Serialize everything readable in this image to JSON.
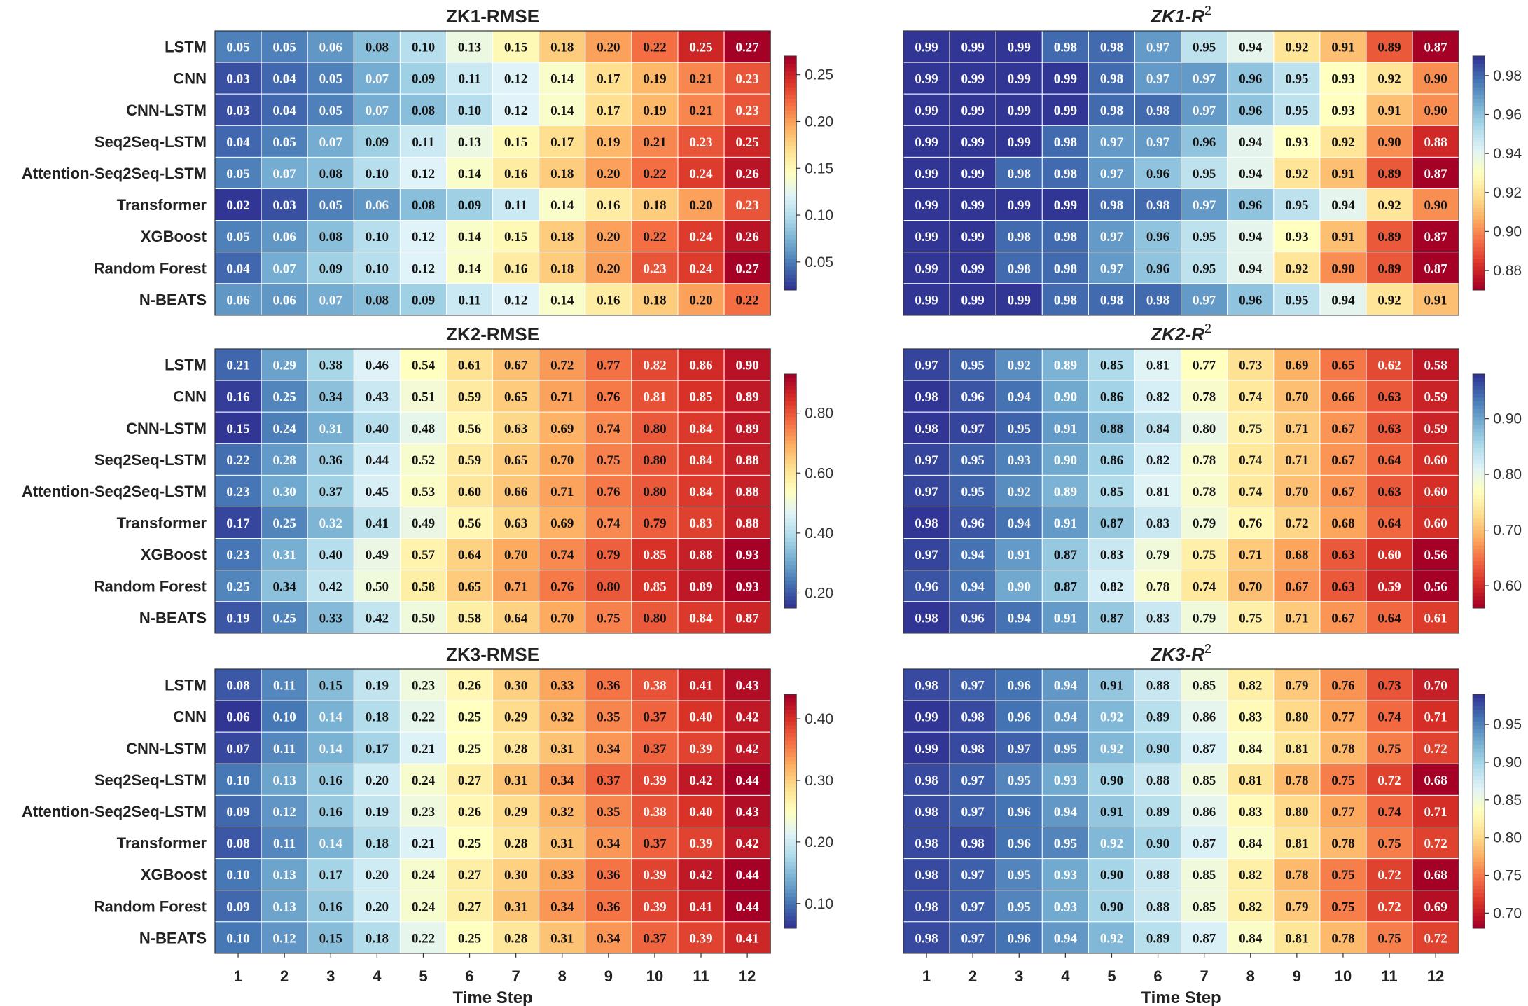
{
  "chart_data": {
    "type": "heatmap",
    "columns": [
      "1",
      "2",
      "3",
      "4",
      "5",
      "6",
      "7",
      "8",
      "9",
      "10",
      "11",
      "12"
    ],
    "xlabel": "Time Step",
    "rows": [
      "LSTM",
      "CNN",
      "CNN-LSTM",
      "Seq2Seq-LSTM",
      "Attention-Seq2Seq-LSTM",
      "Transformer",
      "XGBoost",
      "Random Forest",
      "N-BEATS"
    ],
    "colormap": [
      "#313695",
      "#4575b4",
      "#74add1",
      "#abd9e9",
      "#e0f3f8",
      "#ffffbf",
      "#fee090",
      "#fdae61",
      "#f46d43",
      "#d73027",
      "#a50026"
    ],
    "panels": [
      {
        "title_main": "ZK1-RMSE",
        "title_sup": "",
        "vmin": 0.02,
        "vmax": 0.27,
        "cbar_ticks": [
          "0.05",
          "0.10",
          "0.15",
          "0.20",
          "0.25"
        ],
        "values": [
          [
            "0.05",
            "0.05",
            "0.06",
            "0.08",
            "0.10",
            "0.13",
            "0.15",
            "0.18",
            "0.20",
            "0.22",
            "0.25",
            "0.27"
          ],
          [
            "0.03",
            "0.04",
            "0.05",
            "0.07",
            "0.09",
            "0.11",
            "0.12",
            "0.14",
            "0.17",
            "0.19",
            "0.21",
            "0.23"
          ],
          [
            "0.03",
            "0.04",
            "0.05",
            "0.07",
            "0.08",
            "0.10",
            "0.12",
            "0.14",
            "0.17",
            "0.19",
            "0.21",
            "0.23"
          ],
          [
            "0.04",
            "0.05",
            "0.07",
            "0.09",
            "0.11",
            "0.13",
            "0.15",
            "0.17",
            "0.19",
            "0.21",
            "0.23",
            "0.25"
          ],
          [
            "0.05",
            "0.07",
            "0.08",
            "0.10",
            "0.12",
            "0.14",
            "0.16",
            "0.18",
            "0.20",
            "0.22",
            "0.24",
            "0.26"
          ],
          [
            "0.02",
            "0.03",
            "0.05",
            "0.06",
            "0.08",
            "0.09",
            "0.11",
            "0.14",
            "0.16",
            "0.18",
            "0.20",
            "0.23"
          ],
          [
            "0.05",
            "0.06",
            "0.08",
            "0.10",
            "0.12",
            "0.14",
            "0.15",
            "0.18",
            "0.20",
            "0.22",
            "0.24",
            "0.26"
          ],
          [
            "0.04",
            "0.07",
            "0.09",
            "0.10",
            "0.12",
            "0.14",
            "0.16",
            "0.18",
            "0.20",
            "0.23",
            "0.24",
            "0.27"
          ],
          [
            "0.06",
            "0.06",
            "0.07",
            "0.08",
            "0.09",
            "0.11",
            "0.12",
            "0.14",
            "0.16",
            "0.18",
            "0.20",
            "0.22"
          ]
        ]
      },
      {
        "title_main": "ZK1-R",
        "title_sup": "2",
        "vmin": 0.87,
        "vmax": 0.99,
        "cbar_ticks": [
          "0.88",
          "0.90",
          "0.92",
          "0.94",
          "0.96",
          "0.98"
        ],
        "values": [
          [
            "0.99",
            "0.99",
            "0.99",
            "0.98",
            "0.98",
            "0.97",
            "0.95",
            "0.94",
            "0.92",
            "0.91",
            "0.89",
            "0.87"
          ],
          [
            "0.99",
            "0.99",
            "0.99",
            "0.99",
            "0.98",
            "0.97",
            "0.97",
            "0.96",
            "0.95",
            "0.93",
            "0.92",
            "0.90"
          ],
          [
            "0.99",
            "0.99",
            "0.99",
            "0.99",
            "0.98",
            "0.98",
            "0.97",
            "0.96",
            "0.95",
            "0.93",
            "0.91",
            "0.90"
          ],
          [
            "0.99",
            "0.99",
            "0.99",
            "0.98",
            "0.97",
            "0.97",
            "0.96",
            "0.94",
            "0.93",
            "0.92",
            "0.90",
            "0.88"
          ],
          [
            "0.99",
            "0.99",
            "0.98",
            "0.98",
            "0.97",
            "0.96",
            "0.95",
            "0.94",
            "0.92",
            "0.91",
            "0.89",
            "0.87"
          ],
          [
            "0.99",
            "0.99",
            "0.99",
            "0.99",
            "0.98",
            "0.98",
            "0.97",
            "0.96",
            "0.95",
            "0.94",
            "0.92",
            "0.90"
          ],
          [
            "0.99",
            "0.99",
            "0.98",
            "0.98",
            "0.97",
            "0.96",
            "0.95",
            "0.94",
            "0.93",
            "0.91",
            "0.89",
            "0.87"
          ],
          [
            "0.99",
            "0.99",
            "0.98",
            "0.98",
            "0.97",
            "0.96",
            "0.95",
            "0.94",
            "0.92",
            "0.90",
            "0.89",
            "0.87"
          ],
          [
            "0.99",
            "0.99",
            "0.99",
            "0.98",
            "0.98",
            "0.98",
            "0.97",
            "0.96",
            "0.95",
            "0.94",
            "0.92",
            "0.91"
          ]
        ]
      },
      {
        "title_main": "ZK2-RMSE",
        "title_sup": "",
        "vmin": 0.15,
        "vmax": 0.93,
        "cbar_ticks": [
          "0.20",
          "0.40",
          "0.60",
          "0.80"
        ],
        "values": [
          [
            "0.21",
            "0.29",
            "0.38",
            "0.46",
            "0.54",
            "0.61",
            "0.67",
            "0.72",
            "0.77",
            "0.82",
            "0.86",
            "0.90"
          ],
          [
            "0.16",
            "0.25",
            "0.34",
            "0.43",
            "0.51",
            "0.59",
            "0.65",
            "0.71",
            "0.76",
            "0.81",
            "0.85",
            "0.89"
          ],
          [
            "0.15",
            "0.24",
            "0.31",
            "0.40",
            "0.48",
            "0.56",
            "0.63",
            "0.69",
            "0.74",
            "0.80",
            "0.84",
            "0.89"
          ],
          [
            "0.22",
            "0.28",
            "0.36",
            "0.44",
            "0.52",
            "0.59",
            "0.65",
            "0.70",
            "0.75",
            "0.80",
            "0.84",
            "0.88"
          ],
          [
            "0.23",
            "0.30",
            "0.37",
            "0.45",
            "0.53",
            "0.60",
            "0.66",
            "0.71",
            "0.76",
            "0.80",
            "0.84",
            "0.88"
          ],
          [
            "0.17",
            "0.25",
            "0.32",
            "0.41",
            "0.49",
            "0.56",
            "0.63",
            "0.69",
            "0.74",
            "0.79",
            "0.83",
            "0.88"
          ],
          [
            "0.23",
            "0.31",
            "0.40",
            "0.49",
            "0.57",
            "0.64",
            "0.70",
            "0.74",
            "0.79",
            "0.85",
            "0.88",
            "0.93"
          ],
          [
            "0.25",
            "0.34",
            "0.42",
            "0.50",
            "0.58",
            "0.65",
            "0.71",
            "0.76",
            "0.80",
            "0.85",
            "0.89",
            "0.93"
          ],
          [
            "0.19",
            "0.25",
            "0.33",
            "0.42",
            "0.50",
            "0.58",
            "0.64",
            "0.70",
            "0.75",
            "0.80",
            "0.84",
            "0.87"
          ]
        ]
      },
      {
        "title_main": "ZK2-R",
        "title_sup": "2",
        "vmin": 0.56,
        "vmax": 0.98,
        "cbar_ticks": [
          "0.60",
          "0.70",
          "0.80",
          "0.90"
        ],
        "values": [
          [
            "0.97",
            "0.95",
            "0.92",
            "0.89",
            "0.85",
            "0.81",
            "0.77",
            "0.73",
            "0.69",
            "0.65",
            "0.62",
            "0.58"
          ],
          [
            "0.98",
            "0.96",
            "0.94",
            "0.90",
            "0.86",
            "0.82",
            "0.78",
            "0.74",
            "0.70",
            "0.66",
            "0.63",
            "0.59"
          ],
          [
            "0.98",
            "0.97",
            "0.95",
            "0.91",
            "0.88",
            "0.84",
            "0.80",
            "0.75",
            "0.71",
            "0.67",
            "0.63",
            "0.59"
          ],
          [
            "0.97",
            "0.95",
            "0.93",
            "0.90",
            "0.86",
            "0.82",
            "0.78",
            "0.74",
            "0.71",
            "0.67",
            "0.64",
            "0.60"
          ],
          [
            "0.97",
            "0.95",
            "0.92",
            "0.89",
            "0.85",
            "0.81",
            "0.78",
            "0.74",
            "0.70",
            "0.67",
            "0.63",
            "0.60"
          ],
          [
            "0.98",
            "0.96",
            "0.94",
            "0.91",
            "0.87",
            "0.83",
            "0.79",
            "0.76",
            "0.72",
            "0.68",
            "0.64",
            "0.60"
          ],
          [
            "0.97",
            "0.94",
            "0.91",
            "0.87",
            "0.83",
            "0.79",
            "0.75",
            "0.71",
            "0.68",
            "0.63",
            "0.60",
            "0.56"
          ],
          [
            "0.96",
            "0.94",
            "0.90",
            "0.87",
            "0.82",
            "0.78",
            "0.74",
            "0.70",
            "0.67",
            "0.63",
            "0.59",
            "0.56"
          ],
          [
            "0.98",
            "0.96",
            "0.94",
            "0.91",
            "0.87",
            "0.83",
            "0.79",
            "0.75",
            "0.71",
            "0.67",
            "0.64",
            "0.61"
          ]
        ]
      },
      {
        "title_main": "ZK3-RMSE",
        "title_sup": "",
        "vmin": 0.06,
        "vmax": 0.44,
        "cbar_ticks": [
          "0.10",
          "0.20",
          "0.30",
          "0.40"
        ],
        "values": [
          [
            "0.08",
            "0.11",
            "0.15",
            "0.19",
            "0.23",
            "0.26",
            "0.30",
            "0.33",
            "0.36",
            "0.38",
            "0.41",
            "0.43"
          ],
          [
            "0.06",
            "0.10",
            "0.14",
            "0.18",
            "0.22",
            "0.25",
            "0.29",
            "0.32",
            "0.35",
            "0.37",
            "0.40",
            "0.42"
          ],
          [
            "0.07",
            "0.11",
            "0.14",
            "0.17",
            "0.21",
            "0.25",
            "0.28",
            "0.31",
            "0.34",
            "0.37",
            "0.39",
            "0.42"
          ],
          [
            "0.10",
            "0.13",
            "0.16",
            "0.20",
            "0.24",
            "0.27",
            "0.31",
            "0.34",
            "0.37",
            "0.39",
            "0.42",
            "0.44"
          ],
          [
            "0.09",
            "0.12",
            "0.16",
            "0.19",
            "0.23",
            "0.26",
            "0.29",
            "0.32",
            "0.35",
            "0.38",
            "0.40",
            "0.43"
          ],
          [
            "0.08",
            "0.11",
            "0.14",
            "0.18",
            "0.21",
            "0.25",
            "0.28",
            "0.31",
            "0.34",
            "0.37",
            "0.39",
            "0.42"
          ],
          [
            "0.10",
            "0.13",
            "0.17",
            "0.20",
            "0.24",
            "0.27",
            "0.30",
            "0.33",
            "0.36",
            "0.39",
            "0.42",
            "0.44"
          ],
          [
            "0.09",
            "0.13",
            "0.16",
            "0.20",
            "0.24",
            "0.27",
            "0.31",
            "0.34",
            "0.36",
            "0.39",
            "0.41",
            "0.44"
          ],
          [
            "0.10",
            "0.12",
            "0.15",
            "0.18",
            "0.22",
            "0.25",
            "0.28",
            "0.31",
            "0.34",
            "0.37",
            "0.39",
            "0.41"
          ]
        ]
      },
      {
        "title_main": "ZK3-R",
        "title_sup": "2",
        "vmin": 0.68,
        "vmax": 0.99,
        "cbar_ticks": [
          "0.70",
          "0.75",
          "0.80",
          "0.85",
          "0.90",
          "0.95"
        ],
        "values": [
          [
            "0.98",
            "0.97",
            "0.96",
            "0.94",
            "0.91",
            "0.88",
            "0.85",
            "0.82",
            "0.79",
            "0.76",
            "0.73",
            "0.70"
          ],
          [
            "0.99",
            "0.98",
            "0.96",
            "0.94",
            "0.92",
            "0.89",
            "0.86",
            "0.83",
            "0.80",
            "0.77",
            "0.74",
            "0.71"
          ],
          [
            "0.99",
            "0.98",
            "0.97",
            "0.95",
            "0.92",
            "0.90",
            "0.87",
            "0.84",
            "0.81",
            "0.78",
            "0.75",
            "0.72"
          ],
          [
            "0.98",
            "0.97",
            "0.95",
            "0.93",
            "0.90",
            "0.88",
            "0.85",
            "0.81",
            "0.78",
            "0.75",
            "0.72",
            "0.68"
          ],
          [
            "0.98",
            "0.97",
            "0.96",
            "0.94",
            "0.91",
            "0.89",
            "0.86",
            "0.83",
            "0.80",
            "0.77",
            "0.74",
            "0.71"
          ],
          [
            "0.98",
            "0.98",
            "0.96",
            "0.95",
            "0.92",
            "0.90",
            "0.87",
            "0.84",
            "0.81",
            "0.78",
            "0.75",
            "0.72"
          ],
          [
            "0.98",
            "0.97",
            "0.95",
            "0.93",
            "0.90",
            "0.88",
            "0.85",
            "0.82",
            "0.78",
            "0.75",
            "0.72",
            "0.68"
          ],
          [
            "0.98",
            "0.97",
            "0.95",
            "0.93",
            "0.90",
            "0.88",
            "0.85",
            "0.82",
            "0.79",
            "0.75",
            "0.72",
            "0.69"
          ],
          [
            "0.98",
            "0.97",
            "0.96",
            "0.94",
            "0.92",
            "0.89",
            "0.87",
            "0.84",
            "0.81",
            "0.78",
            "0.75",
            "0.72"
          ]
        ]
      }
    ]
  }
}
